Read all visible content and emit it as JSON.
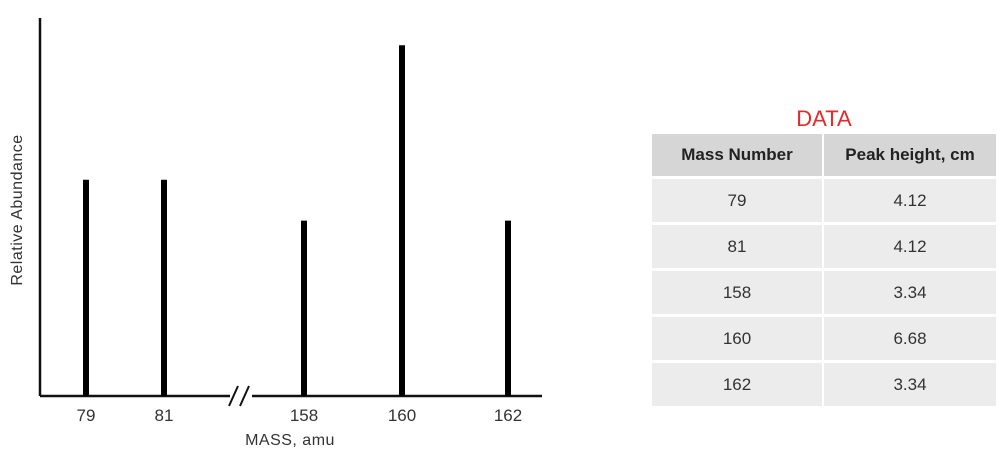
{
  "chart_data": {
    "type": "bar",
    "categories": [
      "79",
      "81",
      "158",
      "160",
      "162"
    ],
    "values": [
      4.12,
      4.12,
      3.34,
      6.68,
      3.34
    ],
    "xlabel": "MASS, amu",
    "ylabel": "Relative Abundance",
    "ylim": [
      0,
      7.2
    ],
    "axis_break": true,
    "grid": false,
    "legend": "none"
  },
  "table": {
    "title": "DATA",
    "columns": [
      "Mass Number",
      "Peak height, cm"
    ],
    "rows": [
      [
        "79",
        "4.12"
      ],
      [
        "81",
        "4.12"
      ],
      [
        "158",
        "3.34"
      ],
      [
        "160",
        "6.68"
      ],
      [
        "162",
        "3.34"
      ]
    ]
  }
}
